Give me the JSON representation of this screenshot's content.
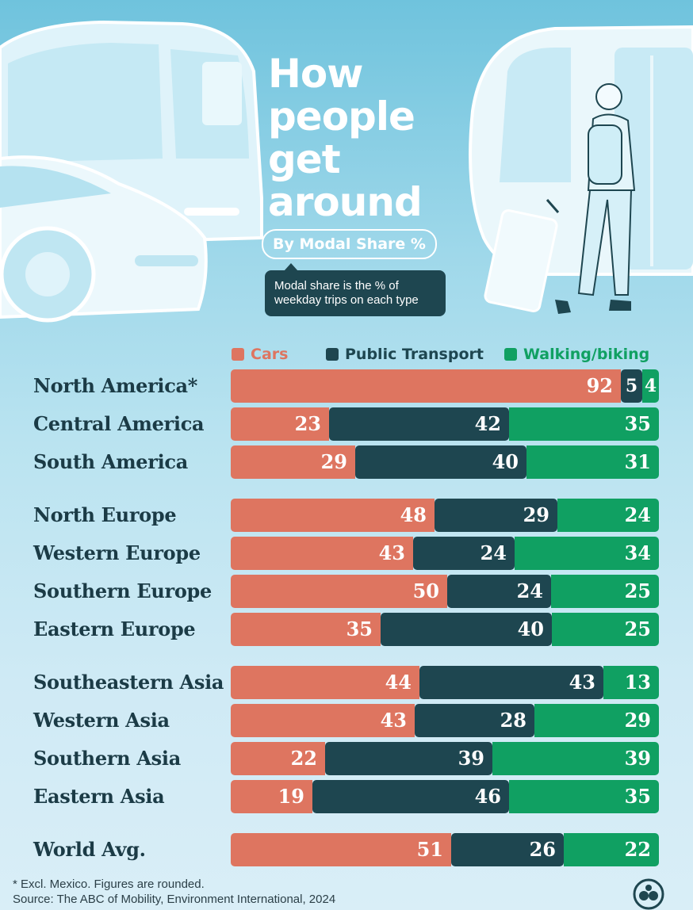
{
  "title": {
    "lines": [
      "How",
      "people",
      "get",
      "around"
    ],
    "subtitle": "By Modal Share %",
    "note_lines": [
      "Modal share is the % of",
      "weekday trips on each type"
    ]
  },
  "colors": {
    "cars": "#de7560",
    "public_transport": "#1e4650",
    "walking_biking": "#10a062"
  },
  "chart_data": {
    "type": "bar",
    "orientation": "horizontal",
    "stacked": true,
    "unit": "%",
    "xlim": [
      0,
      100
    ],
    "legend": "top",
    "categories": [
      "North America*",
      "Central America",
      "South America",
      "North Europe",
      "Western Europe",
      "Southern Europe",
      "Eastern Europe",
      "Southeastern Asia",
      "Western Asia",
      "Southern Asia",
      "Eastern Asia",
      "World Avg."
    ],
    "groups": [
      [
        0,
        1,
        2
      ],
      [
        3,
        4,
        5,
        6
      ],
      [
        7,
        8,
        9,
        10
      ],
      [
        11
      ]
    ],
    "series": [
      {
        "name": "Cars",
        "values": [
          92,
          23,
          29,
          48,
          43,
          50,
          35,
          44,
          43,
          22,
          19,
          51
        ]
      },
      {
        "name": "Public Transport",
        "values": [
          5,
          42,
          40,
          29,
          24,
          24,
          40,
          43,
          28,
          39,
          46,
          26
        ]
      },
      {
        "name": "Walking/biking",
        "values": [
          4,
          35,
          31,
          24,
          34,
          25,
          25,
          13,
          29,
          39,
          35,
          22
        ]
      }
    ]
  },
  "footnote": {
    "note": "* Excl. Mexico. Figures are rounded.",
    "source": "Source: The ABC of Mobility, Environment International, 2024"
  }
}
